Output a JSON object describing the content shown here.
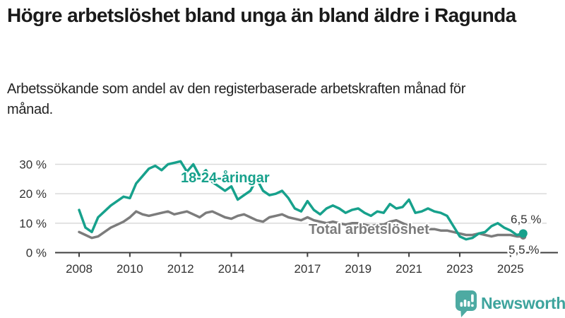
{
  "header": {
    "title": "Högre arbetslöshet bland unga än bland äldre i Ragunda",
    "subtitle": "Arbetssökande som andel av den registerbaserade arbetskraften månad för månad."
  },
  "footer": {
    "brand": "Newsworthy",
    "logo_icon": "bar-chart-speech-bubble-icon",
    "brand_color": "#3ea49d",
    "icon_color": "#4daaa2"
  },
  "chart_data": {
    "type": "line",
    "title": "Högre arbetslöshet bland unga än bland äldre i Ragunda",
    "subtitle": "Arbetssökande som andel av den registerbaserade arbetskraften månad för månad.",
    "xlabel": "",
    "ylabel": "",
    "grid": "horizontal",
    "legend_position": "inline-annotations",
    "x_axis": {
      "ticks": [
        2008,
        2010,
        2012,
        2014,
        2017,
        2019,
        2021,
        2023,
        2025
      ],
      "tick_labels": [
        "2008",
        "2010",
        "2012",
        "2014",
        "2017",
        "2019",
        "2021",
        "2023",
        "2025"
      ],
      "range": [
        2007.1,
        2026.9
      ]
    },
    "y_axis": {
      "ticks": [
        0,
        10,
        20,
        30
      ],
      "tick_labels": [
        "0 %",
        "10 %",
        "20 %",
        "30 %"
      ],
      "range": [
        0,
        33
      ],
      "unit": "%"
    },
    "colors": {
      "grid": "#dadada",
      "axis": "#3f3f3f",
      "tick_text": "#333333",
      "end_label_text": "#333333"
    },
    "x": [
      2008,
      2008.25,
      2008.5,
      2008.75,
      2009,
      2009.25,
      2009.5,
      2009.75,
      2010,
      2010.25,
      2010.5,
      2010.75,
      2011,
      2011.25,
      2011.5,
      2011.75,
      2012,
      2012.25,
      2012.5,
      2012.75,
      2013,
      2013.25,
      2013.5,
      2013.75,
      2014,
      2014.25,
      2014.5,
      2014.75,
      2015,
      2015.25,
      2015.5,
      2015.75,
      2016,
      2016.25,
      2016.5,
      2016.75,
      2017,
      2017.25,
      2017.5,
      2017.75,
      2018,
      2018.25,
      2018.5,
      2018.75,
      2019,
      2019.25,
      2019.5,
      2019.75,
      2020,
      2020.25,
      2020.5,
      2020.75,
      2021,
      2021.25,
      2021.5,
      2021.75,
      2022,
      2022.25,
      2022.5,
      2022.75,
      2023,
      2023.25,
      2023.5,
      2023.75,
      2024,
      2024.25,
      2024.5,
      2024.75,
      2025,
      2025.25,
      2025.5
    ],
    "series": [
      {
        "name": "18-24-åringar",
        "color": "#17a18c",
        "end_label": "6,5 %",
        "end_value": 6.5,
        "values": [
          14.5,
          8.5,
          7.0,
          12.0,
          14.0,
          16.0,
          17.5,
          19.0,
          18.5,
          23.5,
          26.0,
          28.5,
          29.5,
          28.0,
          30.0,
          30.5,
          31.0,
          27.5,
          30.0,
          26.0,
          28.0,
          24.0,
          22.5,
          21.0,
          22.5,
          18.0,
          19.5,
          21.0,
          25.0,
          21.0,
          19.5,
          20.0,
          21.0,
          18.5,
          15.0,
          14.0,
          17.5,
          14.5,
          13.0,
          15.0,
          16.0,
          15.0,
          13.5,
          14.5,
          15.0,
          13.5,
          12.5,
          14.0,
          13.5,
          16.5,
          15.0,
          15.5,
          18.0,
          13.5,
          14.0,
          15.0,
          14.0,
          13.5,
          12.5,
          9.0,
          5.5,
          4.5,
          5.0,
          6.5,
          7.0,
          9.0,
          10.0,
          8.5,
          7.5,
          6.0,
          6.5
        ]
      },
      {
        "name": "Total arbetslöshet",
        "color": "#7c7c7c",
        "end_label": "5,5 %",
        "end_value": 5.5,
        "values": [
          7.0,
          6.0,
          5.0,
          5.5,
          7.0,
          8.5,
          9.5,
          10.5,
          12.0,
          14.0,
          13.0,
          12.5,
          13.0,
          13.5,
          14.0,
          13.0,
          13.5,
          14.0,
          13.0,
          12.0,
          13.5,
          14.0,
          13.0,
          12.0,
          11.5,
          12.5,
          13.0,
          12.0,
          11.0,
          10.5,
          12.0,
          12.5,
          13.0,
          12.0,
          11.5,
          11.0,
          12.0,
          11.0,
          10.5,
          10.0,
          10.5,
          10.0,
          9.5,
          10.0,
          10.0,
          9.5,
          9.0,
          9.5,
          9.5,
          10.5,
          11.0,
          10.0,
          9.0,
          8.5,
          8.0,
          8.0,
          8.0,
          7.5,
          7.5,
          7.0,
          6.5,
          6.0,
          6.0,
          6.5,
          6.0,
          5.5,
          6.0,
          6.0,
          6.0,
          5.5,
          5.5
        ]
      }
    ]
  }
}
